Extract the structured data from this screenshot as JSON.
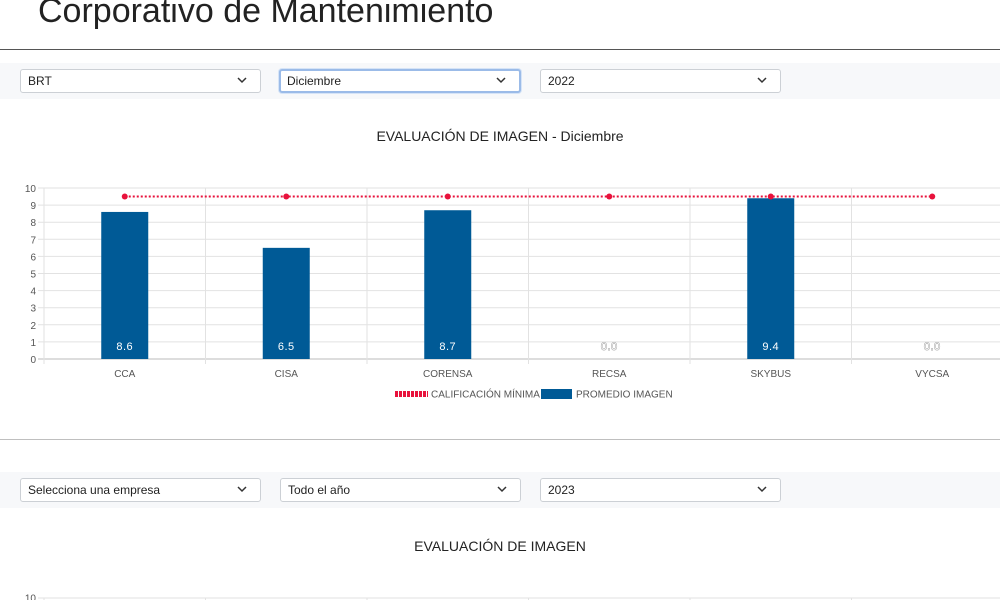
{
  "page": {
    "title": "Corporativo de Mantenimiento"
  },
  "filters_top": {
    "company": "BRT",
    "month": "Diciembre",
    "year": "2022"
  },
  "filters_bottom": {
    "company": "Selecciona una empresa",
    "period": "Todo el año",
    "year": "2023"
  },
  "colors": {
    "bar": "#005a96",
    "min_line": "#e8123c"
  },
  "chart_data": [
    {
      "type": "bar",
      "title": "EVALUACIÓN DE IMAGEN - Diciembre",
      "categories": [
        "CCA",
        "CISA",
        "CORENSA",
        "RECSA",
        "SKYBUS",
        "VYCSA"
      ],
      "series": [
        {
          "name": "CALIFICACIÓN MÍNIMA",
          "type": "line",
          "values": [
            9.5,
            9.5,
            9.5,
            9.5,
            9.5,
            9.5
          ]
        },
        {
          "name": "PROMEDIO IMAGEN",
          "type": "bar",
          "values": [
            8.6,
            6.5,
            8.7,
            0.0,
            9.4,
            0.0
          ]
        }
      ],
      "data_labels": [
        "8.6",
        "6.5",
        "8.7",
        "0.0",
        "9.4",
        "0.0"
      ],
      "yticks": [
        "0",
        "1",
        "2",
        "3",
        "4",
        "5",
        "6",
        "7",
        "8",
        "9",
        "10"
      ],
      "ylim": [
        0,
        10
      ],
      "grid": true,
      "legend": "bottom"
    },
    {
      "type": "bar",
      "title": "EVALUACIÓN DE IMAGEN",
      "yticks": [
        "10"
      ],
      "ylim": [
        0,
        10
      ],
      "grid": true
    }
  ]
}
